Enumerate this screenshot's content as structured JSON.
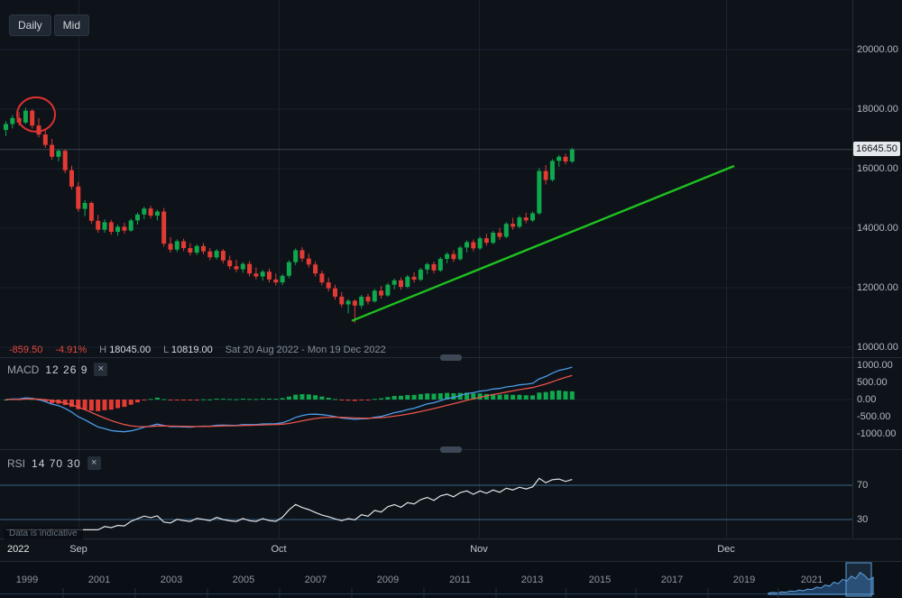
{
  "toolbar": {
    "daily_label": "Daily",
    "mid_label": "Mid"
  },
  "status": {
    "change": "-859.50",
    "change_pct": "-4.91%",
    "high_label": "H",
    "high_value": "18045.00",
    "low_label": "L",
    "low_value": "10819.00",
    "date_range": "Sat 20 Aug 2022 - Mon 19 Dec 2022"
  },
  "price_axis": {
    "labels": [
      "20000.00",
      "18000.00",
      "16000.00",
      "14000.00",
      "12000.00",
      "10000.00"
    ],
    "current": "16645.50"
  },
  "macd": {
    "title": "MACD",
    "params": "12 26 9",
    "close_label": "×",
    "axis_labels": [
      "1000.00",
      "500.00",
      "0.00",
      "-500.00",
      "-1000.00"
    ]
  },
  "rsi": {
    "title": "RSI",
    "params": "14 70 30",
    "close_label": "×",
    "level_labels": [
      "70",
      "30"
    ]
  },
  "time_axis": {
    "labels": [
      "2022",
      "Sep",
      "Oct",
      "Nov",
      "Dec"
    ]
  },
  "navigator": {
    "years": [
      "1999",
      "2001",
      "2003",
      "2005",
      "2007",
      "2009",
      "2011",
      "2013",
      "2015",
      "2017",
      "2019",
      "2021"
    ]
  },
  "footer": {
    "note": "Data is indicative"
  },
  "colors": {
    "up": "#0fa84e",
    "down": "#e23b34",
    "trend": "#1fc11f",
    "annotation": "#e03131",
    "macd_line": "#4e9be9",
    "signal_line": "#e8534a",
    "rsi_line": "#dfe3e8",
    "badge_bg": "#e4e7ec"
  },
  "chart_data": {
    "type": "candlestick",
    "title": "Daily candlestick chart with MACD(12,26,9) and RSI(14,70,30)",
    "visible_range": "Sat 20 Aug 2022 - Mon 19 Dec 2022",
    "period_high": 18045.0,
    "period_low": 10819.0,
    "last_price": 16645.5,
    "change": -859.5,
    "change_pct": -4.91,
    "y_axis": {
      "ticks": [
        20000,
        18000,
        16000,
        14000,
        12000,
        10000
      ]
    },
    "x_axis": {
      "ticks": [
        "2022",
        "Sep",
        "Oct",
        "Nov",
        "Dec"
      ]
    },
    "ohlc": [
      [
        17300,
        17600,
        17100,
        17500
      ],
      [
        17500,
        17800,
        17350,
        17700
      ],
      [
        17700,
        17900,
        17450,
        17550
      ],
      [
        17550,
        18045,
        17500,
        17950
      ],
      [
        17950,
        18000,
        17350,
        17450
      ],
      [
        17450,
        17700,
        17050,
        17150
      ],
      [
        17150,
        17350,
        16700,
        16800
      ],
      [
        16800,
        17000,
        16300,
        16400
      ],
      [
        16400,
        16650,
        16250,
        16600
      ],
      [
        16600,
        16650,
        15850,
        15950
      ],
      [
        15950,
        16100,
        15300,
        15400
      ],
      [
        15400,
        15550,
        14550,
        14650
      ],
      [
        14650,
        14950,
        14400,
        14850
      ],
      [
        14850,
        14900,
        14150,
        14250
      ],
      [
        14250,
        14450,
        13850,
        13950
      ],
      [
        13950,
        14300,
        13850,
        14200
      ],
      [
        14200,
        14280,
        13780,
        13880
      ],
      [
        13880,
        14120,
        13750,
        14050
      ],
      [
        14050,
        14180,
        13820,
        13920
      ],
      [
        13920,
        14320,
        13870,
        14260
      ],
      [
        14260,
        14520,
        14120,
        14460
      ],
      [
        14460,
        14720,
        14300,
        14660
      ],
      [
        14660,
        14750,
        14330,
        14420
      ],
      [
        14420,
        14620,
        14260,
        14560
      ],
      [
        14560,
        14680,
        13380,
        13480
      ],
      [
        13480,
        13700,
        13180,
        13280
      ],
      [
        13280,
        13620,
        13200,
        13560
      ],
      [
        13560,
        13650,
        13230,
        13330
      ],
      [
        13330,
        13500,
        13080,
        13180
      ],
      [
        13180,
        13460,
        13100,
        13400
      ],
      [
        13400,
        13500,
        13120,
        13220
      ],
      [
        13220,
        13340,
        12920,
        13020
      ],
      [
        13020,
        13300,
        12950,
        13240
      ],
      [
        13240,
        13300,
        12820,
        12920
      ],
      [
        12920,
        13080,
        12620,
        12720
      ],
      [
        12720,
        12940,
        12520,
        12620
      ],
      [
        12620,
        12860,
        12500,
        12800
      ],
      [
        12800,
        12900,
        12380,
        12480
      ],
      [
        12480,
        12680,
        12280,
        12380
      ],
      [
        12380,
        12600,
        12240,
        12540
      ],
      [
        12540,
        12640,
        12180,
        12280
      ],
      [
        12280,
        12480,
        12080,
        12180
      ],
      [
        12180,
        12460,
        12090,
        12400
      ],
      [
        12400,
        12920,
        12320,
        12860
      ],
      [
        12860,
        13320,
        12760,
        13260
      ],
      [
        13260,
        13360,
        12880,
        12980
      ],
      [
        12980,
        13140,
        12680,
        12780
      ],
      [
        12780,
        12880,
        12380,
        12480
      ],
      [
        12480,
        12580,
        12080,
        12180
      ],
      [
        12180,
        12340,
        11880,
        11980
      ],
      [
        11980,
        12100,
        11600,
        11700
      ],
      [
        11700,
        11850,
        11340,
        11440
      ],
      [
        11440,
        11620,
        11140,
        11560
      ],
      [
        11560,
        11610,
        10819,
        11400
      ],
      [
        11400,
        11760,
        11300,
        11700
      ],
      [
        11700,
        11800,
        11440,
        11540
      ],
      [
        11540,
        11960,
        11500,
        11900
      ],
      [
        11900,
        12060,
        11640,
        11740
      ],
      [
        11740,
        12160,
        11700,
        12100
      ],
      [
        12100,
        12310,
        11950,
        12250
      ],
      [
        12250,
        12340,
        11930,
        12030
      ],
      [
        12030,
        12430,
        11980,
        12370
      ],
      [
        12370,
        12520,
        12170,
        12270
      ],
      [
        12270,
        12670,
        12220,
        12610
      ],
      [
        12610,
        12850,
        12460,
        12790
      ],
      [
        12790,
        12880,
        12480,
        12580
      ],
      [
        12580,
        13030,
        12530,
        12970
      ],
      [
        12970,
        13190,
        12820,
        13130
      ],
      [
        13130,
        13260,
        12860,
        12960
      ],
      [
        12960,
        13410,
        12910,
        13350
      ],
      [
        13350,
        13590,
        13190,
        13530
      ],
      [
        13530,
        13620,
        13220,
        13320
      ],
      [
        13320,
        13720,
        13270,
        13660
      ],
      [
        13660,
        13810,
        13410,
        13510
      ],
      [
        13510,
        13910,
        13460,
        13850
      ],
      [
        13850,
        14010,
        13610,
        13710
      ],
      [
        13710,
        14210,
        13660,
        14150
      ],
      [
        14150,
        14350,
        13950,
        14050
      ],
      [
        14050,
        14420,
        14000,
        14360
      ],
      [
        14360,
        14520,
        14160,
        14260
      ],
      [
        14260,
        14560,
        14210,
        14500
      ],
      [
        14500,
        16020,
        14450,
        15920
      ],
      [
        15920,
        16120,
        15470,
        15620
      ],
      [
        15620,
        16320,
        15570,
        16260
      ],
      [
        16260,
        16460,
        16060,
        16400
      ],
      [
        16400,
        16500,
        16140,
        16240
      ],
      [
        16240,
        16700,
        16190,
        16645.5
      ]
    ],
    "trendline": {
      "from_price": 10900,
      "to_price": 16080
    },
    "circled_high": 18045.0,
    "indicators": {
      "macd": {
        "fast": 12,
        "slow": 26,
        "signal": 9,
        "axis_range": [
          -1000,
          1000
        ]
      },
      "rsi": {
        "period": 14,
        "upper": 70,
        "lower": 30
      }
    },
    "navigator_mini": [
      0.05,
      0.08,
      0.06,
      0.1,
      0.09,
      0.14,
      0.12,
      0.18,
      0.15,
      0.22,
      0.2,
      0.3,
      0.26,
      0.38,
      0.34,
      0.5,
      0.44,
      0.62,
      0.55,
      0.75,
      0.65,
      0.9,
      0.78,
      0.6,
      0.7
    ]
  }
}
